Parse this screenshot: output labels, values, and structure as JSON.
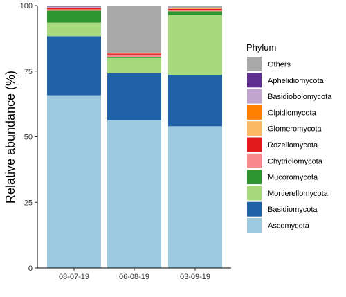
{
  "chart_data": {
    "type": "bar",
    "stacked": true,
    "ylabel": "Relative abundance (%)",
    "ylim": [
      0,
      100
    ],
    "yticks": [
      0,
      25,
      50,
      75,
      100
    ],
    "grid": false,
    "legend_position": "right",
    "legend_title": "Phylum",
    "categories": [
      "08-07-19",
      "06-08-19",
      "03-09-19"
    ],
    "series": [
      {
        "name": "Ascomycota",
        "color": "#9ECAE1",
        "values": [
          65.8,
          56.2,
          54.0
        ]
      },
      {
        "name": "Basidiomycota",
        "color": "#1F62A8",
        "values": [
          22.5,
          18.0,
          19.6
        ]
      },
      {
        "name": "Mortierellomycota",
        "color": "#A6DA7C",
        "values": [
          5.2,
          5.8,
          22.8
        ]
      },
      {
        "name": "Mucoromycota",
        "color": "#2E962E",
        "values": [
          4.5,
          0.3,
          1.4
        ]
      },
      {
        "name": "Chytridiomycota",
        "color": "#F9898C",
        "values": [
          0.6,
          1.0,
          0.5
        ]
      },
      {
        "name": "Rozellomycota",
        "color": "#E31A1C",
        "values": [
          0.4,
          0.4,
          0.4
        ]
      },
      {
        "name": "Glomeromycota",
        "color": "#FDB863",
        "values": [
          0.1,
          0.1,
          0.1
        ]
      },
      {
        "name": "Olpidiomycota",
        "color": "#FF7F00",
        "values": [
          0.1,
          0.1,
          0.1
        ]
      },
      {
        "name": "Basidiobolomycota",
        "color": "#C2A5CF",
        "values": [
          0.3,
          0.1,
          0.1
        ]
      },
      {
        "name": "Aphelidiomycota",
        "color": "#5E2F8E",
        "values": [
          0.1,
          0.1,
          0.1
        ]
      },
      {
        "name": "Others",
        "color": "#A8A8A8",
        "values": [
          0.4,
          17.9,
          0.9
        ]
      }
    ]
  }
}
